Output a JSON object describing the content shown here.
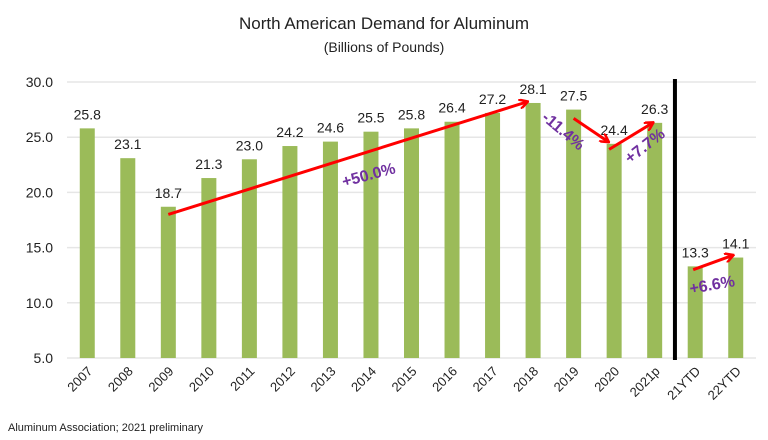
{
  "chart_data": {
    "type": "bar",
    "title": "North American Demand for Aluminum",
    "subtitle": "(Billions of Pounds)",
    "source": "Aluminum Association; 2021 preliminary",
    "categories": [
      "2007",
      "2008",
      "2009",
      "2010",
      "2011",
      "2012",
      "2013",
      "2014",
      "2015",
      "2016",
      "2017",
      "2018",
      "2019",
      "2020",
      "2021p",
      "21YTD",
      "22YTD"
    ],
    "values": [
      25.8,
      23.1,
      18.7,
      21.3,
      23.0,
      24.2,
      24.6,
      25.5,
      25.8,
      26.4,
      27.2,
      28.1,
      27.5,
      24.4,
      26.3,
      13.3,
      14.1
    ],
    "data_labels": [
      "25.8",
      "23.1",
      "18.7",
      "21.3",
      "23.0",
      "24.2",
      "24.6",
      "25.5",
      "25.8",
      "26.4",
      "27.2",
      "28.1",
      "27.5",
      "24.4",
      "26.3",
      "13.3",
      "14.1"
    ],
    "ylim": [
      5,
      30
    ],
    "yticks": [
      "5.0",
      "10.0",
      "15.0",
      "20.0",
      "25.0",
      "30.0"
    ],
    "grid": true,
    "divider_after": "2021p",
    "annotations": [
      {
        "text": "+50.0%",
        "from": "2009",
        "to": "2018"
      },
      {
        "text": "-11.4%",
        "from": "2019",
        "to": "2020"
      },
      {
        "text": "+7.7%",
        "from": "2020",
        "to": "2021p"
      },
      {
        "text": "+6.6%",
        "from": "21YTD",
        "to": "22YTD"
      }
    ],
    "colors": {
      "bar": "#9bbb59",
      "arrow": "#ff0000",
      "annotation": "#7030a0",
      "divider": "#000000",
      "grid": "#e6e6e6"
    }
  }
}
